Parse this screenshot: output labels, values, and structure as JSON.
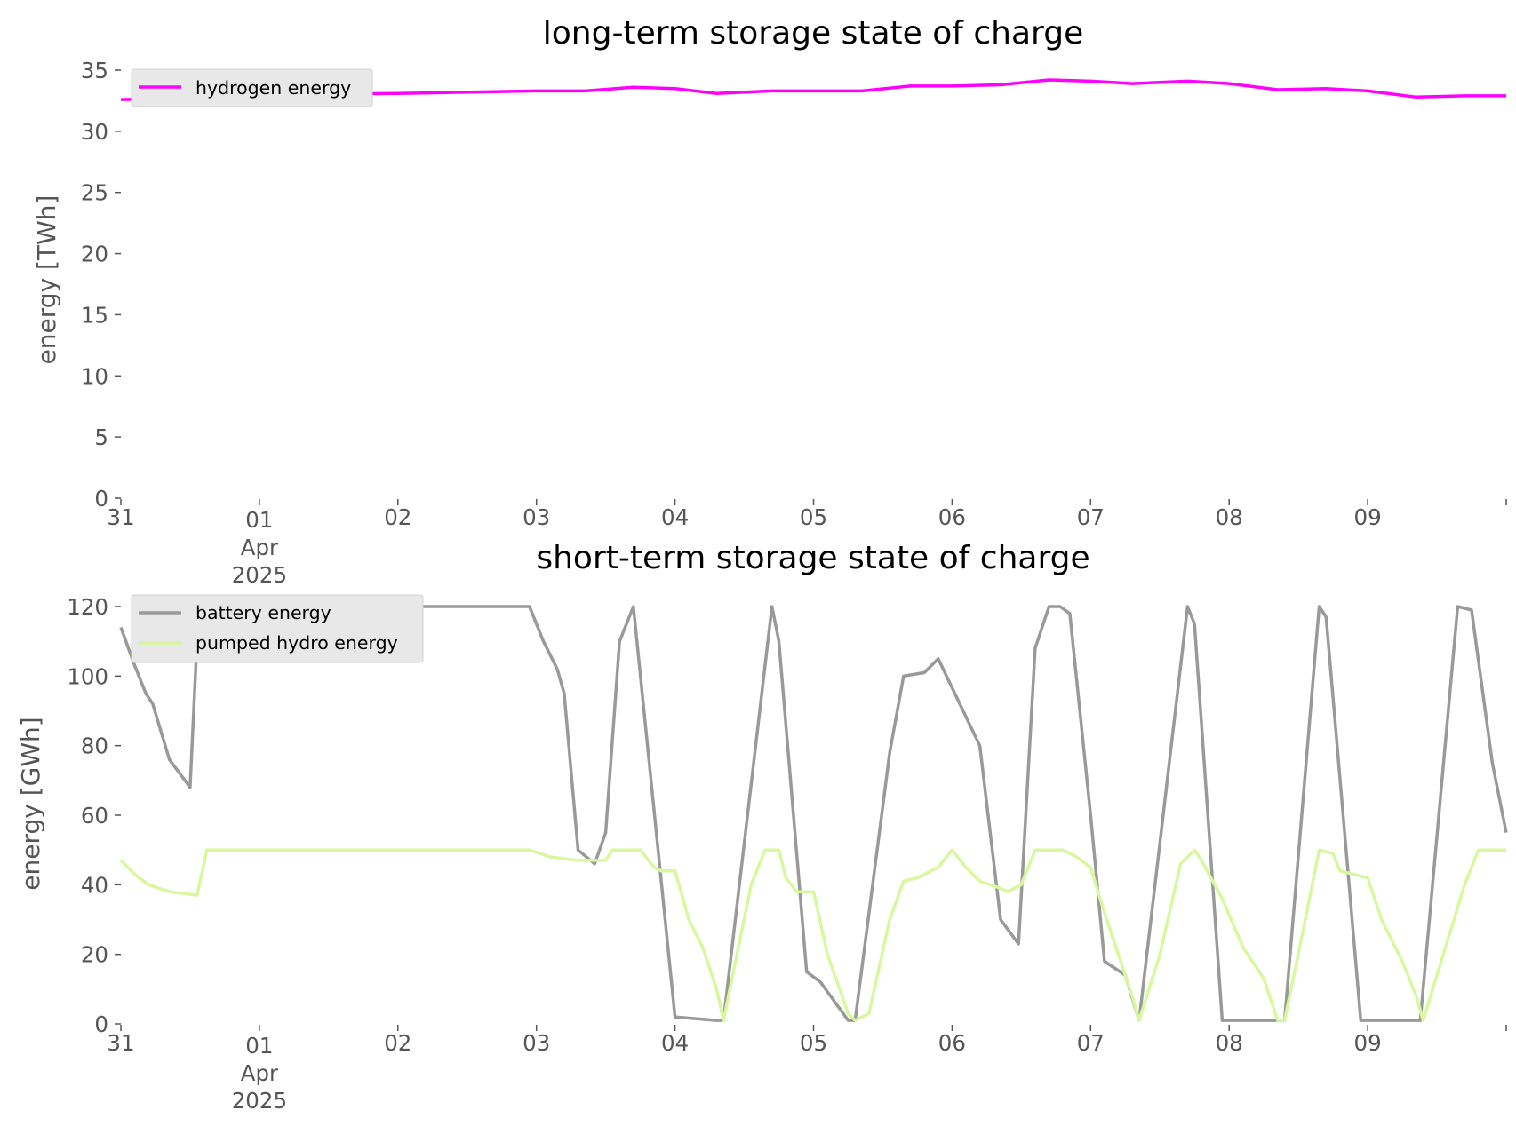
{
  "chart_data": [
    {
      "type": "line",
      "title": "long-term storage state of charge",
      "xlabel": "",
      "ylabel": "energy [TWh]",
      "xlim": [
        0,
        10
      ],
      "ylim": [
        0,
        35
      ],
      "x_ticks": [
        {
          "pos": 0,
          "label": "31"
        },
        {
          "pos": 1,
          "label": "01",
          "sub1": "Apr",
          "sub2": "2025"
        },
        {
          "pos": 2,
          "label": "02"
        },
        {
          "pos": 3,
          "label": "03"
        },
        {
          "pos": 4,
          "label": "04"
        },
        {
          "pos": 5,
          "label": "05"
        },
        {
          "pos": 6,
          "label": "06"
        },
        {
          "pos": 7,
          "label": "07"
        },
        {
          "pos": 8,
          "label": "08"
        },
        {
          "pos": 9,
          "label": "09"
        },
        {
          "pos": 10,
          "label": ""
        }
      ],
      "y_ticks": [
        0,
        5,
        10,
        15,
        20,
        25,
        30,
        35
      ],
      "grid": false,
      "legend": "top-left",
      "series": [
        {
          "name": "hydrogen energy",
          "color": "#ff00ff",
          "x": [
            0,
            0.5,
            1,
            2,
            3,
            3.35,
            3.7,
            4,
            4.3,
            4.7,
            5,
            5.35,
            5.7,
            6,
            6.35,
            6.7,
            7,
            7.3,
            7.7,
            8,
            8.35,
            8.7,
            9,
            9.35,
            9.7,
            10
          ],
          "values": [
            32.6,
            32.7,
            33.0,
            33.1,
            33.3,
            33.3,
            33.6,
            33.5,
            33.1,
            33.3,
            33.3,
            33.3,
            33.7,
            33.7,
            33.8,
            34.2,
            34.1,
            33.9,
            34.1,
            33.9,
            33.4,
            33.5,
            33.3,
            32.8,
            32.9,
            32.9
          ]
        }
      ]
    },
    {
      "type": "line",
      "title": "short-term storage state of charge",
      "xlabel": "",
      "ylabel": "energy [GWh]",
      "xlim": [
        0,
        10
      ],
      "ylim": [
        0,
        120
      ],
      "x_ticks": [
        {
          "pos": 0,
          "label": "31"
        },
        {
          "pos": 1,
          "label": "01",
          "sub1": "Apr",
          "sub2": "2025"
        },
        {
          "pos": 2,
          "label": "02"
        },
        {
          "pos": 3,
          "label": "03"
        },
        {
          "pos": 4,
          "label": "04"
        },
        {
          "pos": 5,
          "label": "05"
        },
        {
          "pos": 6,
          "label": "06"
        },
        {
          "pos": 7,
          "label": "07"
        },
        {
          "pos": 8,
          "label": "08"
        },
        {
          "pos": 9,
          "label": "09"
        },
        {
          "pos": 10,
          "label": ""
        }
      ],
      "y_ticks": [
        0,
        20,
        40,
        60,
        80,
        100,
        120
      ],
      "grid": false,
      "legend": "top-left",
      "series": [
        {
          "name": "battery energy",
          "color": "#999999",
          "x": [
            0,
            0.1,
            0.18,
            0.23,
            0.35,
            0.5,
            0.55,
            0.62,
            0.8,
            1.3,
            1.9,
            2.95,
            3.05,
            3.15,
            3.2,
            3.3,
            3.42,
            3.5,
            3.6,
            3.7,
            4.0,
            4.3,
            4.35,
            4.7,
            4.75,
            4.95,
            5.05,
            5.25,
            5.3,
            5.55,
            5.65,
            5.8,
            5.9,
            6.2,
            6.35,
            6.48,
            6.6,
            6.7,
            6.78,
            6.85,
            7.0,
            7.1,
            7.25,
            7.35,
            7.7,
            7.75,
            7.95,
            8.4,
            8.65,
            8.7,
            8.95,
            9.38,
            9.65,
            9.75,
            9.9,
            10.0
          ],
          "values": [
            114,
            103,
            95,
            92,
            76,
            68,
            110,
            120,
            118,
            118,
            120,
            120,
            110,
            102,
            95,
            50,
            46,
            55,
            110,
            120,
            2,
            1,
            1,
            120,
            110,
            15,
            12,
            1,
            1,
            78,
            100,
            101,
            105,
            80,
            30,
            23,
            108,
            120,
            120,
            118,
            60,
            18,
            14,
            1,
            120,
            115,
            1,
            1,
            120,
            117,
            1,
            1,
            120,
            119,
            75,
            55
          ]
        },
        {
          "name": "pumped hydro energy",
          "color": "#d9f79e",
          "x": [
            0,
            0.1,
            0.2,
            0.35,
            0.55,
            0.6,
            0.62,
            1.0,
            2.0,
            2.95,
            3.1,
            3.3,
            3.5,
            3.55,
            3.75,
            3.85,
            3.9,
            3.95,
            4.0,
            4.1,
            4.2,
            4.3,
            4.35,
            4.55,
            4.65,
            4.75,
            4.8,
            4.88,
            5.0,
            5.1,
            5.25,
            5.3,
            5.4,
            5.55,
            5.65,
            5.75,
            5.9,
            6.0,
            6.1,
            6.2,
            6.35,
            6.4,
            6.5,
            6.6,
            6.8,
            6.9,
            7.0,
            7.1,
            7.2,
            7.3,
            7.35,
            7.5,
            7.65,
            7.75,
            7.8,
            7.95,
            8.1,
            8.25,
            8.35,
            8.4,
            8.55,
            8.65,
            8.75,
            8.8,
            9.0,
            9.1,
            9.25,
            9.35,
            9.4,
            9.7,
            9.8,
            10.0
          ],
          "values": [
            47,
            43,
            40,
            38,
            37,
            46,
            50,
            50,
            50,
            50,
            48,
            47,
            47,
            50,
            50,
            45,
            44,
            44,
            44,
            30,
            22,
            10,
            1,
            40,
            50,
            50,
            42,
            38,
            38,
            20,
            3,
            1,
            3,
            30,
            41,
            42,
            45,
            50,
            45,
            41,
            39,
            38,
            40,
            50,
            50,
            48,
            45,
            32,
            20,
            8,
            1,
            20,
            46,
            50,
            47,
            36,
            22,
            13,
            1,
            1,
            30,
            50,
            49,
            44,
            42,
            30,
            18,
            8,
            1,
            40,
            50,
            50
          ]
        }
      ]
    }
  ]
}
